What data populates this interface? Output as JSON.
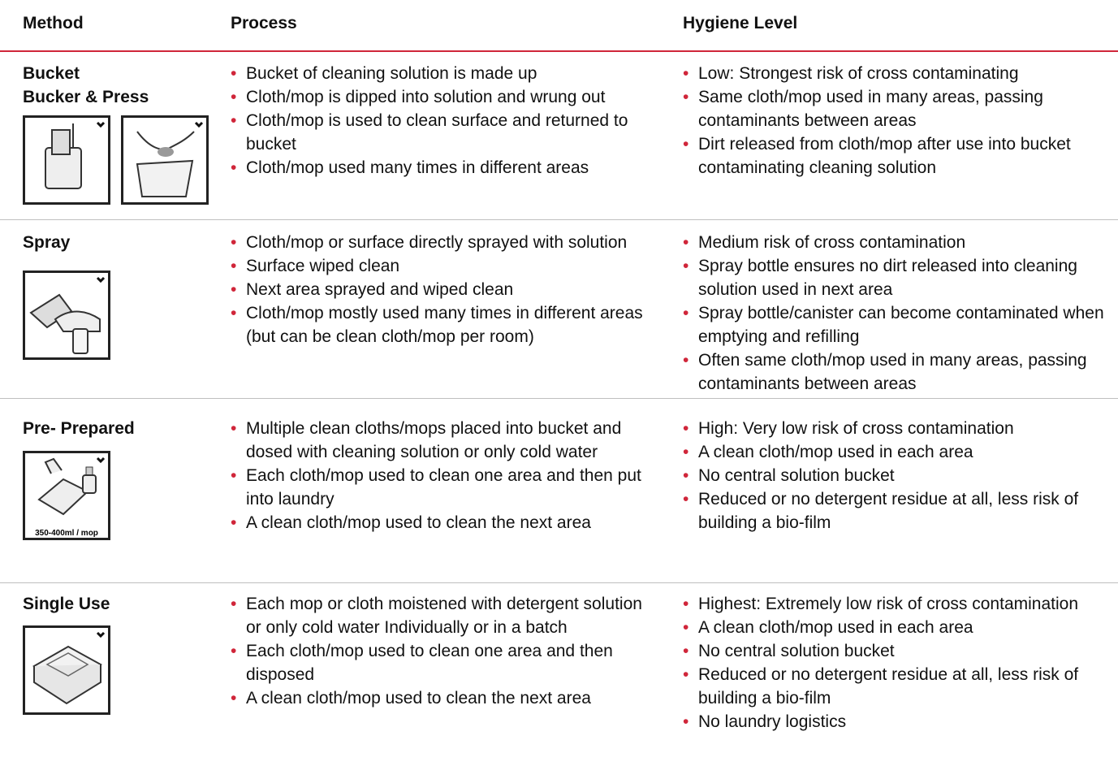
{
  "header": {
    "columns": [
      "Method",
      "Process",
      "Hygiene Level"
    ]
  },
  "rows": [
    {
      "method": [
        "Bucket",
        "Bucker & Press"
      ],
      "process": [
        "Bucket of cleaning solution is made up",
        "Cloth/mop is dipped into solution and wrung out",
        "Cloth/mop is used to clean surface and returned to bucket",
        "Cloth/mop used many times in different  areas"
      ],
      "hygiene": [
        "Low: Strongest risk of cross contaminating",
        "Same cloth/mop used in many areas, passing contaminants between areas",
        "Dirt released from cloth/mop after use into bucket contaminating cleaning solution"
      ]
    },
    {
      "method": [
        "Spray"
      ],
      "process": [
        "Cloth/mop or surface directly sprayed with solution",
        "Surface wiped clean",
        "Next area sprayed and wiped clean",
        "Cloth/mop mostly used many times in different areas (but can be clean cloth/mop per room)"
      ],
      "hygiene": [
        "Medium risk of cross contamination",
        "Spray bottle ensures no dirt released into cleaning solution used in next area",
        "Spray bottle/canister can become contaminated when emptying and refilling",
        "Often same cloth/mop used in many areas, passing contaminants between areas"
      ]
    },
    {
      "method": [
        "Pre- Prepared"
      ],
      "icon_label": "350-400ml / mop",
      "process": [
        "Multiple clean cloths/mops placed into  bucket and dosed with cleaning solution or only cold water",
        "Each cloth/mop used to clean one area and then put into laundry",
        "A clean cloth/mop used to clean the next area"
      ],
      "hygiene": [
        "High: Very low risk of cross contamination",
        "A clean cloth/mop used in each area",
        "No central solution bucket",
        "Reduced or no detergent residue at all, less risk of building a bio-film"
      ]
    },
    {
      "method": [
        "Single Use"
      ],
      "process": [
        "Each mop or cloth moistened with detergent solution or only cold water  Individually or in a batch",
        "Each cloth/mop used to clean one area and then disposed",
        "A clean cloth/mop used to clean the next area"
      ],
      "hygiene": [
        "Highest: Extremely low risk of cross contamination",
        "A clean cloth/mop used in each area",
        "No central solution bucket",
        "Reduced or no detergent residue at all, less risk of building a bio-film",
        "No laundry logistics"
      ]
    }
  ]
}
